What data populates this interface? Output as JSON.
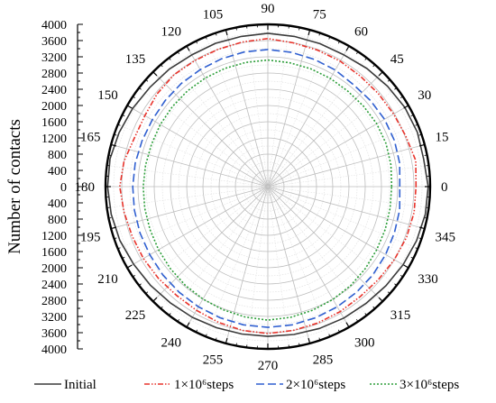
{
  "chart_data": {
    "type": "polar-line",
    "ylabel": "Number of contacts",
    "radial_range": [
      0,
      4000
    ],
    "radial_ticks": [
      0,
      400,
      800,
      1200,
      1600,
      2000,
      2400,
      2800,
      3200,
      3600,
      4000
    ],
    "angle_ticks": [
      0,
      15,
      30,
      45,
      60,
      75,
      90,
      105,
      120,
      135,
      150,
      165,
      180,
      195,
      210,
      225,
      240,
      255,
      270,
      285,
      300,
      315,
      330,
      345
    ],
    "angles_deg": [
      0,
      10,
      20,
      30,
      40,
      50,
      60,
      70,
      80,
      90,
      100,
      110,
      120,
      130,
      140,
      150,
      160,
      170,
      180,
      190,
      200,
      210,
      220,
      230,
      240,
      250,
      260,
      270,
      280,
      290,
      300,
      310,
      320,
      330,
      340,
      350
    ],
    "grid": true,
    "legend_position": "bottom",
    "series": [
      {
        "name": "Initial",
        "color": "#3a3a3a",
        "dash": "solid",
        "values": [
          3950,
          3900,
          3920,
          3900,
          3850,
          3800,
          3750,
          3750,
          3760,
          3780,
          3760,
          3760,
          3750,
          3780,
          3800,
          3850,
          3900,
          3950,
          3950,
          3920,
          3880,
          3820,
          3780,
          3740,
          3720,
          3700,
          3690,
          3690,
          3700,
          3720,
          3740,
          3760,
          3800,
          3850,
          3900,
          3940
        ]
      },
      {
        "name": "1×10⁶steps",
        "color": "#e8332b",
        "dash": "dashdotdot",
        "values": [
          3650,
          3700,
          3620,
          3580,
          3560,
          3550,
          3570,
          3580,
          3600,
          3650,
          3620,
          3600,
          3590,
          3600,
          3560,
          3500,
          3500,
          3600,
          3650,
          3600,
          3560,
          3540,
          3520,
          3500,
          3520,
          3560,
          3600,
          3620,
          3600,
          3580,
          3560,
          3540,
          3560,
          3600,
          3640,
          3660
        ]
      },
      {
        "name": "2×10⁶steps",
        "color": "#2f5fd0",
        "dash": "longdash",
        "values": [
          3250,
          3300,
          3320,
          3320,
          3300,
          3280,
          3320,
          3340,
          3360,
          3380,
          3370,
          3350,
          3330,
          3320,
          3300,
          3290,
          3300,
          3320,
          3330,
          3340,
          3350,
          3360,
          3380,
          3400,
          3420,
          3440,
          3460,
          3470,
          3460,
          3440,
          3420,
          3400,
          3380,
          3350,
          3320,
          3300
        ]
      },
      {
        "name": "3×10⁶steps",
        "color": "#2d9e3a",
        "dash": "dotted",
        "values": [
          3050,
          3080,
          3100,
          3100,
          3080,
          3070,
          3080,
          3090,
          3100,
          3120,
          3110,
          3100,
          3090,
          3080,
          3070,
          3060,
          3050,
          3060,
          3070,
          3080,
          3090,
          3110,
          3140,
          3170,
          3200,
          3230,
          3260,
          3290,
          3270,
          3240,
          3210,
          3180,
          3140,
          3100,
          3080,
          3060
        ]
      }
    ]
  }
}
